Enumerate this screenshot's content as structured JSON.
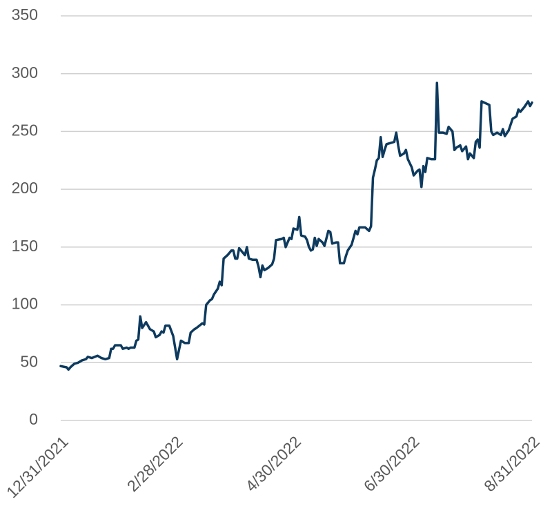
{
  "chart_data": {
    "type": "line",
    "color": "#0d3a5e",
    "grid": true,
    "x": [
      "12/31/2021",
      "1/3/2022",
      "1/4/2022",
      "1/5/2022",
      "1/7/2022",
      "1/9/2022",
      "1/11/2022",
      "1/13/2022",
      "1/14/2022",
      "1/16/2022",
      "1/19/2022",
      "1/21/2022",
      "1/23/2022",
      "1/25/2022",
      "1/26/2022",
      "1/27/2022",
      "1/28/2022",
      "1/31/2022",
      "2/1/2022",
      "2/3/2022",
      "2/4/2022",
      "2/5/2022",
      "2/7/2022",
      "2/8/2022",
      "2/9/2022",
      "2/10/2022",
      "2/11/2022",
      "2/13/2022",
      "2/15/2022",
      "2/17/2022",
      "2/18/2022",
      "2/20/2022",
      "2/21/2022",
      "2/22/2022",
      "2/23/2022",
      "2/25/2022",
      "2/27/2022",
      "2/28/2022",
      "3/1/2022",
      "3/3/2022",
      "3/4/2022",
      "3/5/2022",
      "3/7/2022",
      "3/8/2022",
      "3/10/2022",
      "3/11/2022",
      "3/14/2022",
      "3/15/2022",
      "3/16/2022",
      "3/18/2022",
      "3/19/2022",
      "3/20/2022",
      "3/22/2022",
      "3/23/2022",
      "3/24/2022",
      "3/25/2022",
      "3/27/2022",
      "3/29/2022",
      "3/30/2022",
      "3/31/2022",
      "4/1/2022",
      "4/2/2022",
      "4/4/2022",
      "4/5/2022",
      "4/6/2022",
      "4/7/2022",
      "4/9/2022",
      "4/11/2022",
      "4/12/2022",
      "4/13/2022",
      "4/14/2022",
      "4/15/2022",
      "4/17/2022",
      "4/19/2022",
      "4/20/2022",
      "4/21/2022",
      "4/24/2022",
      "4/25/2022",
      "4/26/2022",
      "4/28/2022",
      "4/29/2022",
      "4/30/2022",
      "5/2/2022",
      "5/3/2022",
      "5/4/2022",
      "5/6/2022",
      "5/7/2022",
      "5/8/2022",
      "5/9/2022",
      "5/10/2022",
      "5/11/2022",
      "5/12/2022",
      "5/13/2022",
      "5/15/2022",
      "5/16/2022",
      "5/18/2022",
      "5/19/2022",
      "5/20/2022",
      "5/22/2022",
      "5/23/2022",
      "5/24/2022",
      "5/26/2022",
      "5/27/2022",
      "5/28/2022",
      "5/30/2022",
      "6/1/2022",
      "6/2/2022",
      "6/3/2022",
      "6/6/2022",
      "6/8/2022",
      "6/9/2022",
      "6/10/2022",
      "6/11/2022",
      "6/12/2022",
      "6/13/2022",
      "6/14/2022",
      "6/15/2022",
      "6/16/2022",
      "6/17/2022",
      "6/19/2022",
      "6/21/2022",
      "6/22/2022",
      "6/23/2022",
      "6/24/2022",
      "6/26/2022",
      "6/27/2022",
      "6/28/2022",
      "6/30/2022",
      "7/1/2022",
      "7/3/2022",
      "7/4/2022",
      "7/5/2022",
      "7/6/2022",
      "7/7/2022",
      "7/8/2022",
      "7/10/2022",
      "7/12/2022",
      "7/13/2022",
      "7/14/2022",
      "7/16/2022",
      "7/18/2022",
      "7/19/2022",
      "7/21/2022",
      "7/22/2022",
      "7/23/2022",
      "7/25/2022",
      "7/26/2022",
      "7/28/2022",
      "7/29/2022",
      "7/30/2022",
      "8/1/2022",
      "8/2/2022",
      "8/3/2022",
      "8/4/2022",
      "8/5/2022",
      "8/9/2022",
      "8/10/2022",
      "8/11/2022",
      "8/13/2022",
      "8/15/2022",
      "8/16/2022",
      "8/17/2022",
      "8/19/2022",
      "8/20/2022",
      "8/21/2022",
      "8/23/2022",
      "8/24/2022",
      "8/25/2022",
      "8/27/2022",
      "8/29/2022",
      "8/30/2022",
      "8/31/2022"
    ],
    "values": [
      47,
      46,
      44,
      46,
      49,
      50,
      52,
      53,
      55,
      54,
      56,
      54,
      53,
      54,
      62,
      62,
      65,
      65,
      62,
      63,
      62,
      63,
      63,
      69,
      70,
      90,
      80,
      85,
      79,
      77,
      72,
      74,
      77,
      76,
      82,
      82,
      73,
      63,
      53,
      69,
      68,
      67,
      67,
      76,
      79,
      80,
      84,
      83,
      100,
      104,
      105,
      109,
      114,
      120,
      117,
      140,
      143,
      147,
      147,
      140,
      140,
      149,
      145,
      143,
      150,
      140,
      139,
      139,
      133,
      124,
      134,
      130,
      132,
      135,
      140,
      156,
      157,
      158,
      150,
      158,
      157,
      166,
      165,
      176,
      160,
      159,
      156,
      150,
      147,
      148,
      158,
      151,
      157,
      154,
      151,
      164,
      163,
      153,
      154,
      154,
      136,
      136,
      142,
      147,
      152,
      164,
      161,
      167,
      167,
      164,
      168,
      210,
      217,
      225,
      227,
      245,
      228,
      234,
      239,
      240,
      241,
      249,
      238,
      229,
      231,
      234,
      226,
      219,
      212,
      216,
      217,
      202,
      220,
      215,
      227,
      226,
      226,
      292,
      249,
      249,
      248,
      254,
      250,
      234,
      236,
      238,
      233,
      237,
      226,
      231,
      227,
      241,
      243,
      236,
      276,
      273,
      250,
      247,
      249,
      247,
      252,
      246,
      251,
      256,
      261,
      263,
      269,
      267,
      271,
      276,
      272,
      275
    ],
    "xlim": [
      "12/31/2021",
      "8/31/2022"
    ],
    "xticks": [
      "12/31/2021",
      "2/28/2022",
      "4/30/2022",
      "6/30/2022",
      "8/31/2022"
    ],
    "ylim": [
      0,
      350
    ],
    "yticks": [
      0,
      50,
      100,
      150,
      200,
      250,
      300,
      350
    ]
  }
}
